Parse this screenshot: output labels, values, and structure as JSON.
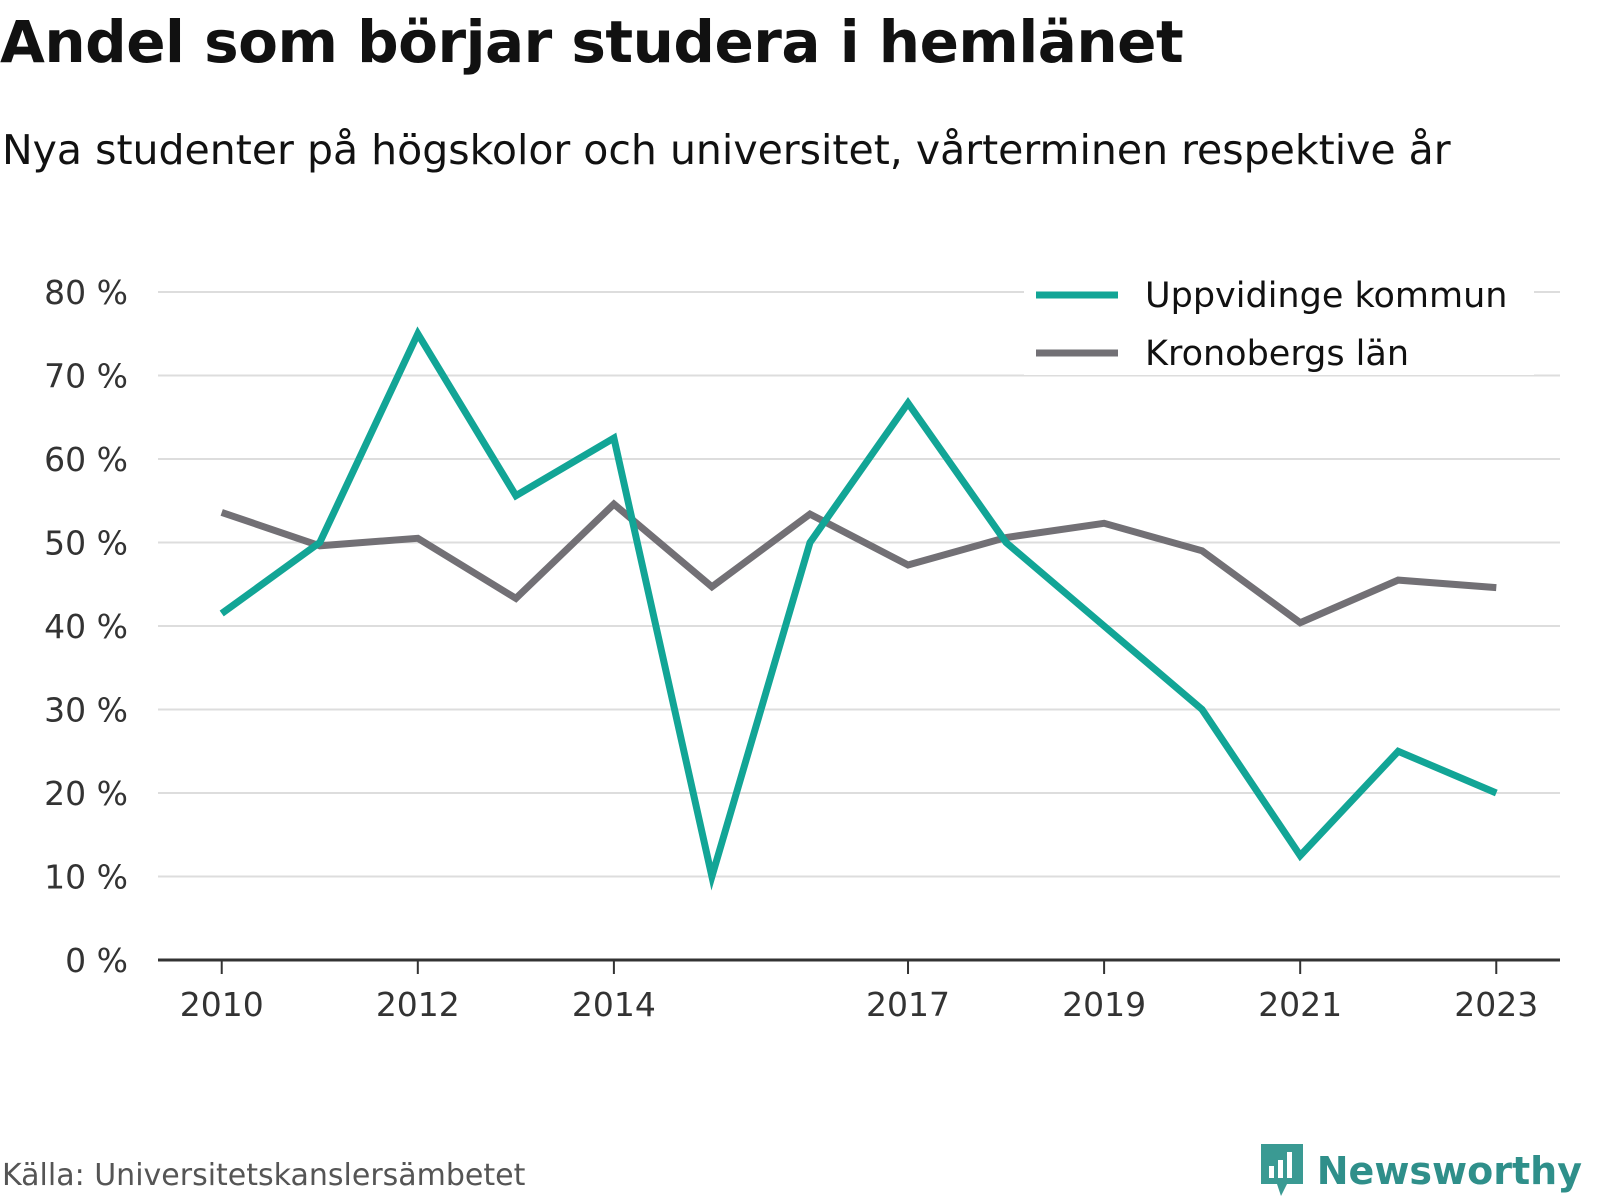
{
  "chart_data": {
    "type": "line",
    "title": "Andel som börjar studera i hemlänet",
    "subtitle": "Nya studenter på högskolor och universitet, vårterminen respektive år",
    "x": [
      2010,
      2011,
      2012,
      2013,
      2014,
      2015,
      2016,
      2017,
      2018,
      2019,
      2020,
      2021,
      2022,
      2023
    ],
    "x_tick_labels": [
      "2010",
      "2012",
      "2014",
      "2017",
      "2019",
      "2021",
      "2023"
    ],
    "x_tick_values": [
      2010,
      2012,
      2014,
      2017,
      2019,
      2021,
      2023
    ],
    "y_tick_labels": [
      "0 %",
      "10 %",
      "20 %",
      "30 %",
      "40 %",
      "50 %",
      "60 %",
      "70 %",
      "80 %"
    ],
    "y_tick_values": [
      0,
      10,
      20,
      30,
      40,
      50,
      60,
      70,
      80
    ],
    "ylim": [
      0,
      80
    ],
    "xlim": [
      2009.35,
      2023.65
    ],
    "grid": true,
    "legend_position": "top-right",
    "series": [
      {
        "name": "Uppvidinge kommun",
        "color": "#12a596",
        "values": [
          41.5,
          50.0,
          75.0,
          55.6,
          62.5,
          10.0,
          50.0,
          66.7,
          50.0,
          40.0,
          30.0,
          12.5,
          25.0,
          20.0
        ]
      },
      {
        "name": "Kronobergs län",
        "color": "#727075",
        "values": [
          53.6,
          49.6,
          50.5,
          43.3,
          54.6,
          44.7,
          53.4,
          47.3,
          50.6,
          52.3,
          49.0,
          40.4,
          45.5,
          44.6
        ]
      }
    ]
  },
  "footer": {
    "source": "Källa: Universitetskanslersämbetet",
    "brand": "Newsworthy",
    "brand_icon": "newsworthy-logo-icon",
    "brand_color": "#2f8f8a"
  }
}
